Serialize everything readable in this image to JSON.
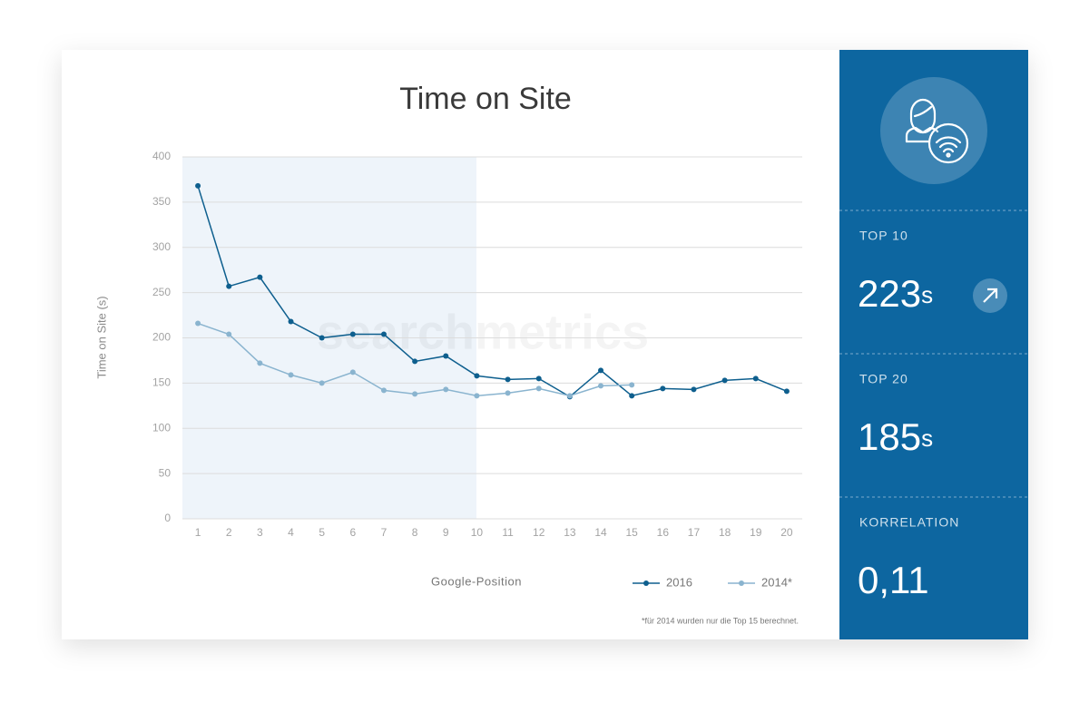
{
  "chart_data": {
    "type": "line",
    "title": "Time on Site",
    "y_label": "Time on Site (s)",
    "x_label": "Google-Position",
    "watermark": "searchmetrics",
    "footnote": "*für 2014 wurden nur die Top 15 berechnet.",
    "categories": [
      "1",
      "2",
      "3",
      "4",
      "5",
      "6",
      "7",
      "8",
      "9",
      "10",
      "11",
      "12",
      "13",
      "14",
      "15",
      "16",
      "17",
      "18",
      "19",
      "20"
    ],
    "series": [
      {
        "name": "2016",
        "color": "#0e5f8e",
        "values": [
          368,
          257,
          267,
          218,
          200,
          204,
          204,
          174,
          180,
          158,
          154,
          155,
          135,
          164,
          136,
          144,
          143,
          153,
          155,
          141
        ]
      },
      {
        "name": "2014*",
        "color": "#8ab4cf",
        "values": [
          216,
          204,
          172,
          159,
          150,
          162,
          142,
          138,
          143,
          136,
          139,
          144,
          136,
          147,
          148,
          null,
          null,
          null,
          null,
          null
        ]
      }
    ],
    "ylim": [
      0,
      400
    ],
    "yticks": [
      0,
      50,
      100,
      150,
      200,
      250,
      300,
      350,
      400
    ],
    "grid": true
  },
  "sidebar": [
    {
      "label": "TOP 10",
      "value": "223",
      "unit": "s"
    },
    {
      "label": "TOP 20",
      "value": "185",
      "unit": "s"
    },
    {
      "label": "KORRELATION",
      "value": "0,11"
    }
  ]
}
